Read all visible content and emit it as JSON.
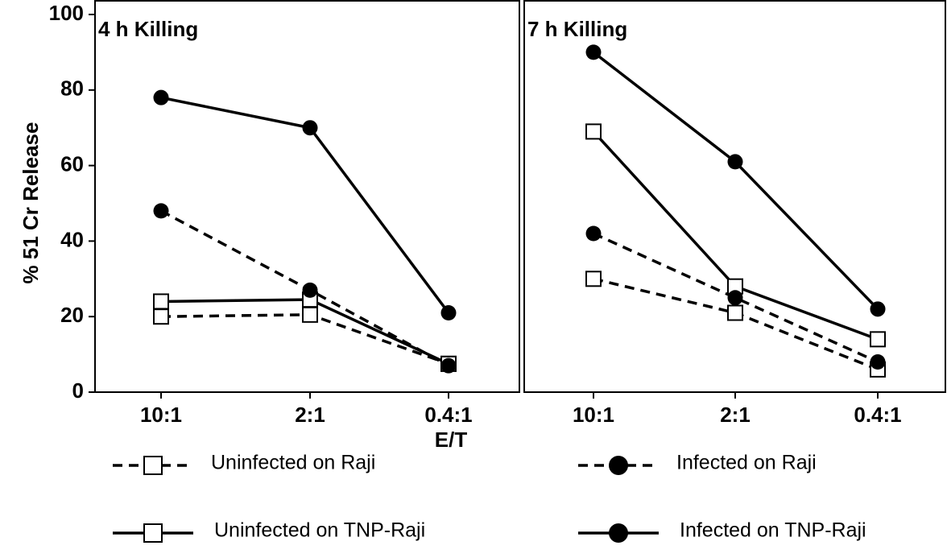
{
  "chart_data": [
    {
      "type": "line",
      "title": "4 h Killing",
      "ylabel": "% 51 Cr Release",
      "xlabel": "E/T",
      "categories": [
        "10:1",
        "2:1",
        "0.4:1"
      ],
      "ylim": [
        0,
        100
      ],
      "yticks": [
        0,
        20,
        40,
        60,
        80,
        100
      ],
      "series": [
        {
          "name": "Uninfected on Raji",
          "color": "#000000",
          "dashed": true,
          "marker": "square",
          "values": [
            20,
            20.5,
            7.5
          ]
        },
        {
          "name": "Uninfected on TNP-Raji",
          "color": "#000000",
          "dashed": false,
          "marker": "square",
          "values": [
            24,
            24.5,
            7.5
          ]
        },
        {
          "name": "Infected on Raji",
          "color": "#000000",
          "dashed": true,
          "marker": "circle",
          "values": [
            48,
            27,
            7
          ]
        },
        {
          "name": "Infected on TNP-Raji",
          "color": "#000000",
          "dashed": false,
          "marker": "circle",
          "values": [
            78,
            70,
            21
          ]
        }
      ]
    },
    {
      "type": "line",
      "title": "7 h Killing",
      "categories": [
        "10:1",
        "2:1",
        "0.4:1"
      ],
      "ylim": [
        0,
        100
      ],
      "series": [
        {
          "color": "#000000",
          "dashed": true,
          "marker": "square",
          "values": [
            30,
            21,
            6
          ]
        },
        {
          "color": "#000000",
          "dashed": false,
          "marker": "square",
          "values": [
            69,
            28,
            14
          ]
        },
        {
          "color": "#000000",
          "dashed": true,
          "marker": "circle",
          "values": [
            42,
            25,
            8
          ]
        },
        {
          "color": "#000000",
          "dashed": false,
          "marker": "circle",
          "values": [
            90,
            61,
            22
          ]
        }
      ]
    }
  ]
}
